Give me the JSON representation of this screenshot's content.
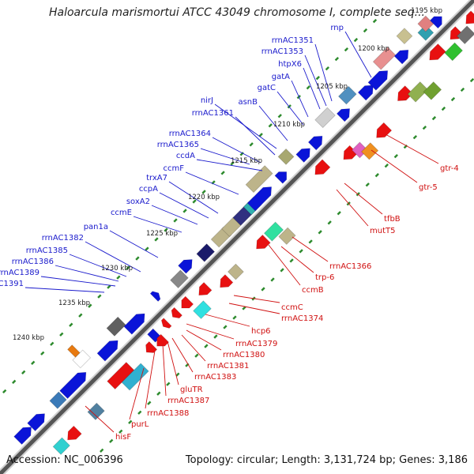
{
  "title": "Haloarcula marismortui ATCC 43049 chromosome I, complete seq...",
  "footer": {
    "accession": "Accession: NC_006396",
    "info": "Topology: circular; Length: 3,131,724 bp; Genes: 3,186"
  },
  "colors": {
    "backbone": "#555555",
    "tick": "#2e8b2e",
    "label_forward": "#1a1acc",
    "label_reverse": "#d01010",
    "gene_forward": "#0a14d8",
    "gene_reverse": "#e81010"
  },
  "ticks": [
    "1195 kbp",
    "1200 kbp",
    "1205 kbp",
    "1210 kbp",
    "1215 kbp",
    "1220 kbp",
    "1225 kbp",
    "1230 kbp",
    "1235 kbp",
    "1240 kbp"
  ],
  "labels_forward": [
    "rnp",
    "rrnAC1351",
    "rrnAC1353",
    "htpX6",
    "gatA",
    "gatC",
    "asnB",
    "nirJ",
    "rrnAC1361",
    "rrnAC1364",
    "rrnAC1365",
    "ccdA",
    "ccmF",
    "trxA7",
    "ccpA",
    "soxA2",
    "ccmE",
    "pan1a",
    "rrnAC1382",
    "rrnAC1385",
    "rrnAC1386",
    "rrnAC1389",
    "rrnAC1391"
  ],
  "labels_reverse": [
    "gtr-4",
    "gtr-5",
    "tfbB",
    "mutT5",
    "rrnAC1366",
    "trp-6",
    "ccmB",
    "ccmC",
    "rrnAC1374",
    "hcp6",
    "rrnAC1379",
    "rrnAC1380",
    "rrnAC1381",
    "rrnAC1383",
    "gluTR",
    "rrnAC1387",
    "rrnAC1388",
    "purL",
    "hisF"
  ]
}
